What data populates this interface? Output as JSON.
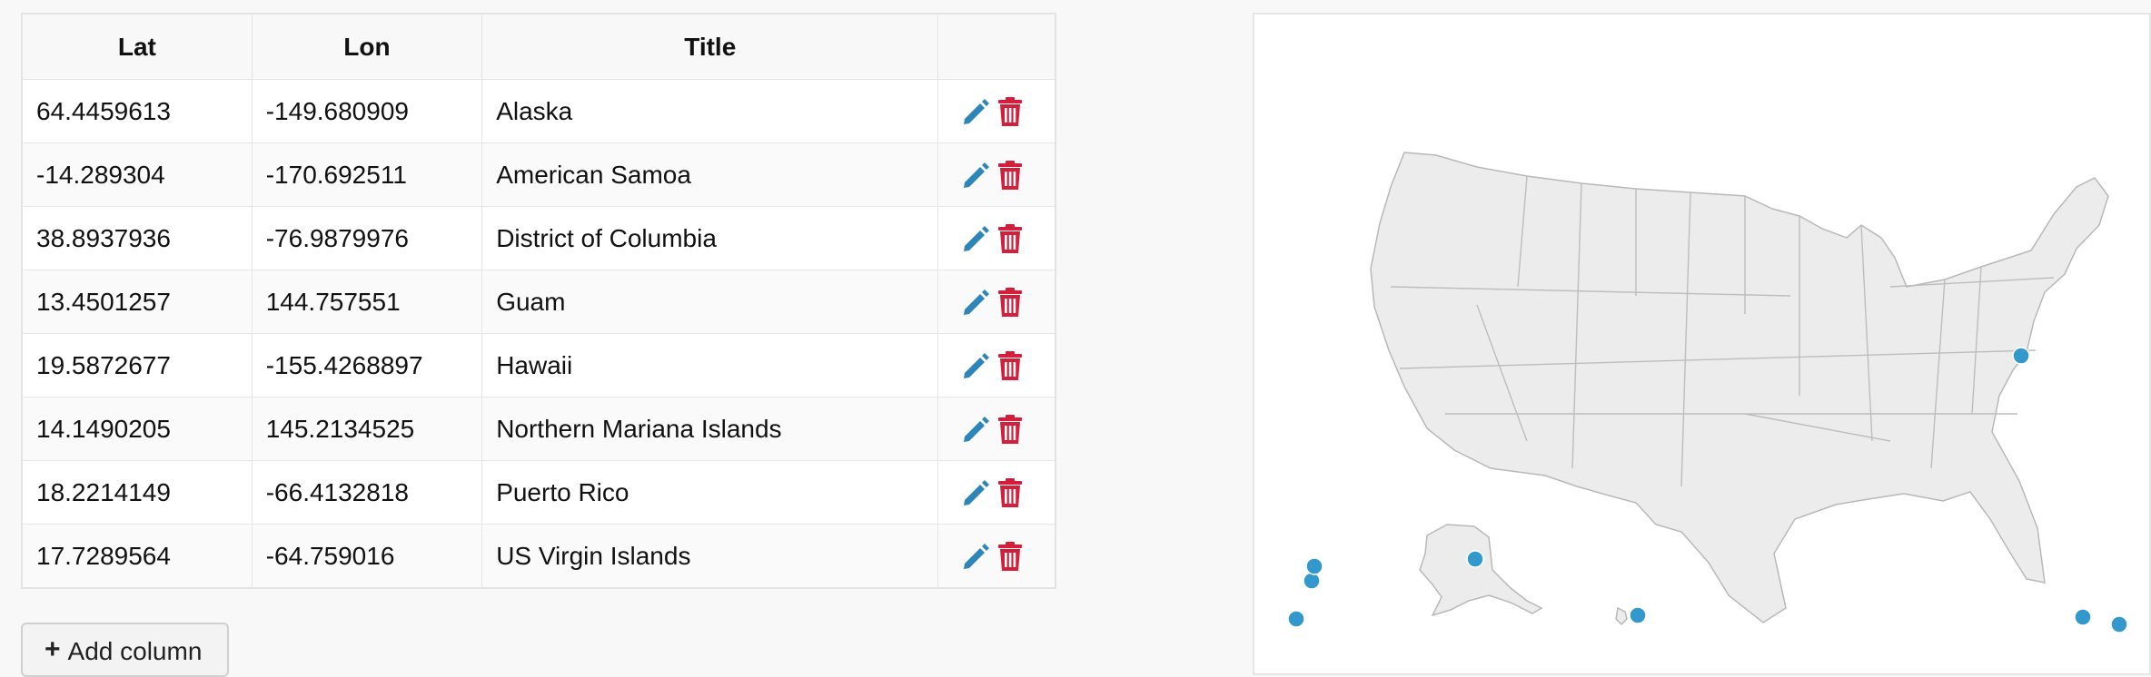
{
  "table": {
    "headers": [
      "Lat",
      "Lon",
      "Title",
      ""
    ],
    "rows": [
      {
        "lat": "64.4459613",
        "lon": "-149.680909",
        "title": "Alaska"
      },
      {
        "lat": "-14.289304",
        "lon": "-170.692511",
        "title": "American Samoa"
      },
      {
        "lat": "38.8937936",
        "lon": "-76.9879976",
        "title": "District of Columbia"
      },
      {
        "lat": "13.4501257",
        "lon": "144.757551",
        "title": "Guam"
      },
      {
        "lat": "19.5872677",
        "lon": "-155.4268897",
        "title": "Hawaii"
      },
      {
        "lat": "14.1490205",
        "lon": "145.2134525",
        "title": "Northern Mariana Islands"
      },
      {
        "lat": "18.2214149",
        "lon": "-66.4132818",
        "title": "Puerto Rico"
      },
      {
        "lat": "17.7289564",
        "lon": "-64.759016",
        "title": "US Virgin Islands"
      }
    ],
    "edit_icon": "pencil-icon",
    "delete_icon": "trash-icon"
  },
  "add_column": {
    "label": "Add column",
    "icon": "plus-icon"
  },
  "map": {
    "region": "United States",
    "marker_color": "#3399cc",
    "land_color": "#ececec",
    "edit_color": "#2e86b8",
    "delete_color": "#d21f3c"
  }
}
